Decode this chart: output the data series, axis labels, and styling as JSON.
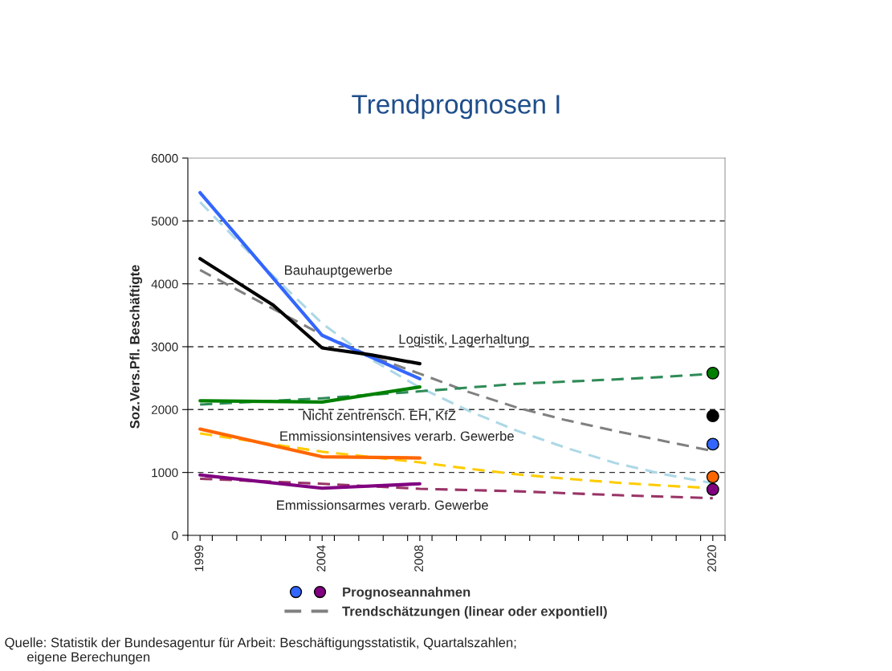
{
  "chart_data": {
    "type": "line",
    "title": "Trendprognosen I",
    "ylabel": "Soz.Vers.Pfl. Beschäftigte",
    "xlim": [
      1998.5,
      2020.5
    ],
    "ylim": [
      0,
      6000
    ],
    "yticks": [
      0,
      1000,
      2000,
      3000,
      4000,
      5000,
      6000
    ],
    "xticks": [
      {
        "value": 1998.5,
        "label": null
      },
      {
        "value": 1999,
        "label": "1999"
      },
      {
        "value": 1999.5,
        "label": null
      },
      {
        "value": 2000.5,
        "label": null
      },
      {
        "value": 2001.5,
        "label": null
      },
      {
        "value": 2002.5,
        "label": null
      },
      {
        "value": 2003.5,
        "label": null
      },
      {
        "value": 2004,
        "label": "2004"
      },
      {
        "value": 2004.5,
        "label": null
      },
      {
        "value": 2005.5,
        "label": null
      },
      {
        "value": 2006.5,
        "label": null
      },
      {
        "value": 2007.5,
        "label": null
      },
      {
        "value": 2008,
        "label": "2008"
      },
      {
        "value": 2008.5,
        "label": null
      },
      {
        "value": 2009.5,
        "label": null
      },
      {
        "value": 2010.5,
        "label": null
      },
      {
        "value": 2011.5,
        "label": null
      },
      {
        "value": 2012.5,
        "label": null
      },
      {
        "value": 2013.5,
        "label": null
      },
      {
        "value": 2014.5,
        "label": null
      },
      {
        "value": 2015.5,
        "label": null
      },
      {
        "value": 2016.5,
        "label": null
      },
      {
        "value": 2017.5,
        "label": null
      },
      {
        "value": 2018.5,
        "label": null
      },
      {
        "value": 2019.5,
        "label": null
      },
      {
        "value": 2020,
        "label": "2020"
      },
      {
        "value": 2020.5,
        "label": null
      }
    ],
    "grid": "y",
    "legend": "bottom",
    "series": [
      {
        "color": "#add8e6",
        "line_style": "dashed",
        "x": [
          1999,
          2001,
          2004,
          2006,
          2008,
          2010,
          2012,
          2014,
          2016,
          2018,
          2020
        ],
        "values": [
          5300,
          4500,
          3370,
          2800,
          2350,
          1980,
          1660,
          1390,
          1150,
          970,
          830
        ]
      },
      {
        "name": "Trendschätzungen (linear oder expontiell)",
        "color": "#808080",
        "line_style": "dashed",
        "x": [
          1999,
          2002,
          2004,
          2006,
          2008,
          2010,
          2012,
          2014,
          2016,
          2018,
          2020
        ],
        "values": [
          4220,
          3600,
          3190,
          2850,
          2570,
          2280,
          2030,
          1830,
          1660,
          1500,
          1340
        ]
      },
      {
        "color": "#2e8b57",
        "line_style": "dashed",
        "x": [
          1999,
          2004,
          2008,
          2012,
          2016,
          2018,
          2020
        ],
        "values": [
          2080,
          2180,
          2290,
          2410,
          2480,
          2520,
          2570
        ]
      },
      {
        "color": "#ffcc00",
        "line_style": "dashed",
        "x": [
          1999,
          2004,
          2008,
          2010,
          2012,
          2014,
          2016,
          2018,
          2020
        ],
        "values": [
          1620,
          1330,
          1160,
          1060,
          970,
          900,
          840,
          790,
          750
        ]
      },
      {
        "color": "#993366",
        "line_style": "dashed",
        "x": [
          1999,
          2004,
          2008,
          2012,
          2016,
          2020
        ],
        "values": [
          900,
          820,
          740,
          700,
          640,
          590
        ]
      },
      {
        "color": "#3366ff",
        "line_style": "solid",
        "x": [
          1999,
          2004,
          2008
        ],
        "values": [
          5450,
          3180,
          2490
        ]
      },
      {
        "color": "#000000",
        "line_style": "solid",
        "x": [
          1999,
          2002,
          2004,
          2006,
          2008
        ],
        "values": [
          4400,
          3660,
          2980,
          2870,
          2730
        ]
      },
      {
        "color": "#008000",
        "line_style": "solid",
        "x": [
          1999,
          2004,
          2008
        ],
        "values": [
          2140,
          2120,
          2360
        ]
      },
      {
        "color": "#ff6600",
        "line_style": "solid",
        "x": [
          1999,
          2004,
          2008
        ],
        "values": [
          1690,
          1250,
          1230
        ]
      },
      {
        "color": "#800080",
        "line_style": "solid",
        "x": [
          1999,
          2004,
          2008
        ],
        "values": [
          960,
          750,
          820
        ]
      },
      {
        "type": "scatter",
        "name": "Prognoseannahmen",
        "marker": "circle",
        "x": [
          2020,
          2020,
          2020,
          2020,
          2020
        ],
        "values": [
          2580,
          1900,
          1450,
          930,
          730
        ],
        "colors": [
          "#008000",
          "#000000",
          "#3366ff",
          "#ff6600",
          "#800080"
        ]
      }
    ],
    "annotations": [
      "Bauhauptgewerbe",
      "Logistik, Lagerhaltung",
      "Nicht zentrensch. EH, KfZ",
      "Emmissionsintensives verarb. Gewerbe",
      "Emmissionsarmes verarb. Gewerbe",
      "Quelle: Statistik der Bundesagentur für Arbeit: Beschäftigungsstatistik, Quartalszahlen;\n      eigene Berechungen"
    ]
  }
}
